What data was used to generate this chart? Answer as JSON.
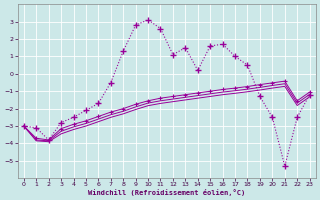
{
  "xlabel": "Windchill (Refroidissement éolien,°C)",
  "x": [
    0,
    1,
    2,
    3,
    4,
    5,
    6,
    7,
    8,
    9,
    10,
    11,
    12,
    13,
    14,
    15,
    16,
    17,
    18,
    19,
    20,
    21,
    22,
    23
  ],
  "line1_y": [
    -3.0,
    -3.1,
    -3.8,
    -2.8,
    -2.5,
    -2.1,
    -1.7,
    -0.5,
    1.3,
    2.8,
    3.1,
    2.6,
    1.1,
    1.5,
    0.2,
    1.6,
    1.7,
    1.0,
    0.5,
    -1.3,
    -2.5,
    -5.3,
    -2.5,
    -1.2
  ],
  "line2_y": [
    -3.0,
    -3.7,
    -3.8,
    -3.15,
    -2.9,
    -2.7,
    -2.45,
    -2.2,
    -2.0,
    -1.75,
    -1.55,
    -1.4,
    -1.3,
    -1.2,
    -1.1,
    -1.0,
    -0.9,
    -0.82,
    -0.73,
    -0.62,
    -0.52,
    -0.42,
    -1.55,
    -1.05
  ],
  "line3_y": [
    -3.0,
    -3.8,
    -3.85,
    -3.3,
    -3.05,
    -2.85,
    -2.6,
    -2.35,
    -2.15,
    -1.9,
    -1.68,
    -1.55,
    -1.45,
    -1.35,
    -1.25,
    -1.15,
    -1.05,
    -0.97,
    -0.88,
    -0.78,
    -0.67,
    -0.57,
    -1.68,
    -1.18
  ],
  "line4_y": [
    -3.0,
    -3.85,
    -3.9,
    -3.45,
    -3.2,
    -3.0,
    -2.75,
    -2.5,
    -2.3,
    -2.05,
    -1.83,
    -1.7,
    -1.6,
    -1.5,
    -1.4,
    -1.3,
    -1.2,
    -1.12,
    -1.03,
    -0.93,
    -0.82,
    -0.72,
    -1.82,
    -1.32
  ],
  "line_color": "#990099",
  "bg_color": "#cce8e8",
  "grid_color": "#aacccc",
  "ylim": [
    -6,
    4
  ],
  "xlim": [
    -0.5,
    23.5
  ],
  "yticks": [
    -5,
    -4,
    -3,
    -2,
    -1,
    0,
    1,
    2,
    3
  ],
  "xticks": [
    0,
    1,
    2,
    3,
    4,
    5,
    6,
    7,
    8,
    9,
    10,
    11,
    12,
    13,
    14,
    15,
    16,
    17,
    18,
    19,
    20,
    21,
    22,
    23
  ]
}
